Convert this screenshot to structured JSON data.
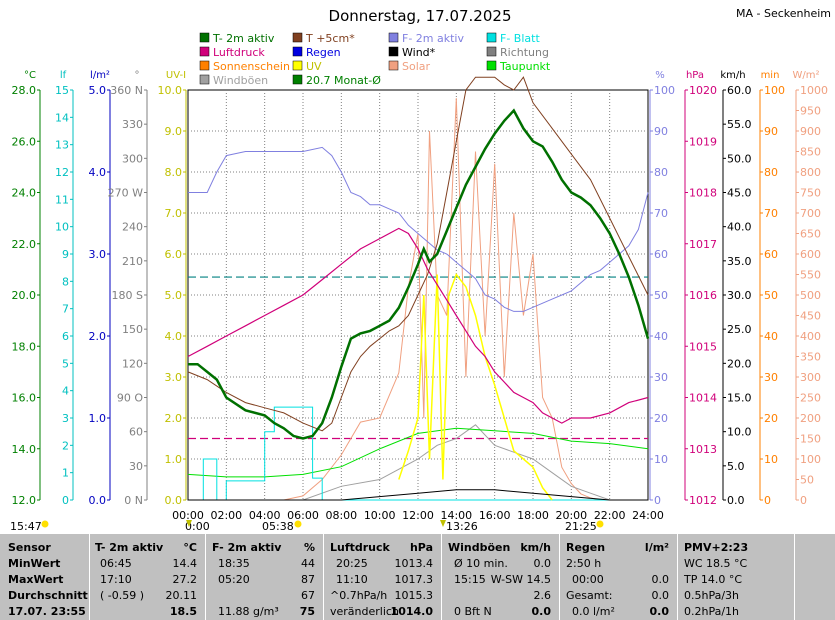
{
  "title": "Donnerstag, 17.07.2025",
  "station": "MA - Seckenheim",
  "legend": [
    {
      "label": "T- 2m aktiv",
      "color": "#007000"
    },
    {
      "label": "T +5cm*",
      "color": "#804020"
    },
    {
      "label": "F- 2m aktiv",
      "color": "#8080e0"
    },
    {
      "label": "F- Blatt",
      "color": "#00e0e0"
    },
    {
      "label": "Luftdruck",
      "color": "#d0007a"
    },
    {
      "label": "Regen",
      "color": "#0000e0"
    },
    {
      "label": "Wind*",
      "color": "#000000"
    },
    {
      "label": "Richtung",
      "color": "#808080"
    },
    {
      "label": "Sonnenschein",
      "color": "#ff8000"
    },
    {
      "label": "UV",
      "color": "#ffff00"
    },
    {
      "label": "Solar",
      "color": "#f0a080"
    },
    {
      "label": "Taupunkt",
      "color": "#00e000"
    },
    {
      "label": "Windböen",
      "color": "#a0a0a0"
    },
    {
      "label": "20.7 Monat-Ø",
      "color": "#008000"
    }
  ],
  "axes": {
    "temp": {
      "unit": "°C",
      "color": "#008000",
      "ticks": [
        "28.0",
        "26.0",
        "24.0",
        "22.0",
        "20.0",
        "18.0",
        "16.0",
        "14.0",
        "12.0"
      ]
    },
    "leaf": {
      "unit": "lf",
      "color": "#00c0c0",
      "ticks": [
        "15",
        "14",
        "13",
        "12",
        "11",
        "10",
        "9",
        "8",
        "7",
        "6",
        "5",
        "4",
        "3",
        "2",
        "1",
        "0"
      ]
    },
    "rain": {
      "unit": "l/m²",
      "color": "#0000c0",
      "ticks": [
        "5.0",
        "4.0",
        "3.0",
        "2.0",
        "1.0",
        "0.0"
      ]
    },
    "dir": {
      "unit": "°",
      "color": "#808080",
      "ticks": [
        "360 N",
        "330",
        "300",
        "270 W",
        "240",
        "210",
        "180 S",
        "150",
        "120",
        "90 O",
        "60",
        "30",
        "0 N"
      ]
    },
    "uv": {
      "unit": "UV-I",
      "color": "#c0c000",
      "ticks": [
        "10.0",
        "9.0",
        "8.0",
        "7.0",
        "6.0",
        "5.0",
        "4.0",
        "3.0",
        "2.0",
        "1.0",
        "0.0"
      ]
    },
    "hum": {
      "unit": "%",
      "color": "#8080e0",
      "ticks": [
        "100",
        "90",
        "80",
        "70",
        "60",
        "50",
        "40",
        "30",
        "20",
        "10",
        "0"
      ]
    },
    "press": {
      "unit": "hPa",
      "color": "#d0007a",
      "ticks": [
        "1020",
        "1019",
        "1018",
        "1017",
        "1016",
        "1015",
        "1014",
        "1013",
        "1012"
      ]
    },
    "wind": {
      "unit": "km/h",
      "color": "#000000",
      "ticks": [
        "60.0",
        "55.0",
        "50.0",
        "45.0",
        "40.0",
        "35.0",
        "30.0",
        "25.0",
        "20.0",
        "15.0",
        "10.0",
        "5.0",
        "0.0"
      ]
    },
    "sun": {
      "unit": "min",
      "color": "#ff8000",
      "ticks": [
        "100",
        "90",
        "80",
        "70",
        "60",
        "50",
        "40",
        "30",
        "20",
        "10",
        "0"
      ]
    },
    "solar": {
      "unit": "W/m²",
      "color": "#f0a080",
      "ticks": [
        "1000",
        "950",
        "900",
        "850",
        "800",
        "750",
        "700",
        "650",
        "600",
        "550",
        "500",
        "450",
        "400",
        "350",
        "300",
        "250",
        "200",
        "150",
        "100",
        "50",
        "0"
      ]
    }
  },
  "time_ticks": [
    "00:00",
    "02:00",
    "04:00",
    "06:00",
    "08:00",
    "10:00",
    "12:00",
    "14:00",
    "16:00",
    "18:00",
    "20:00",
    "22:00",
    "24:00"
  ],
  "sun_events": {
    "left": "15:47",
    "sunrise": "0:00",
    "moon1": "05:38",
    "noon": "13:26",
    "sunset": "21:25"
  },
  "chart_data": {
    "type": "line",
    "x_unit": "hour",
    "xlim": [
      0,
      24
    ],
    "series": [
      {
        "name": "T- 2m aktiv",
        "axis": "°C",
        "color": "#007000",
        "x": [
          0,
          0.5,
          1,
          1.5,
          2,
          3,
          4,
          4.5,
          5,
          5.5,
          6,
          6.5,
          7,
          7.5,
          8,
          8.5,
          9,
          9.5,
          10,
          10.5,
          11,
          11.5,
          12,
          12.3,
          12.6,
          13,
          13.5,
          14,
          14.5,
          15,
          15.5,
          16,
          16.5,
          17,
          17.5,
          18,
          18.5,
          19,
          19.5,
          20,
          20.5,
          21,
          21.5,
          22,
          22.5,
          23,
          23.5,
          24
        ],
        "y": [
          17.3,
          17.3,
          17.0,
          16.7,
          16.0,
          15.5,
          15.3,
          15.0,
          14.8,
          14.5,
          14.4,
          14.5,
          15.0,
          16.0,
          17.2,
          18.3,
          18.5,
          18.6,
          18.8,
          19.0,
          19.5,
          20.3,
          21.2,
          21.8,
          21.3,
          21.6,
          22.5,
          23.4,
          24.3,
          25.0,
          25.7,
          26.3,
          26.8,
          27.2,
          26.5,
          26.0,
          25.8,
          25.2,
          24.5,
          24.0,
          23.8,
          23.5,
          23.0,
          22.4,
          21.6,
          20.7,
          19.6,
          18.3
        ]
      },
      {
        "name": "T +5cm*",
        "axis": "°C",
        "color": "#804020",
        "x": [
          0,
          1,
          2,
          3,
          4,
          5,
          6,
          7,
          7.5,
          8,
          8.5,
          9,
          9.5,
          10,
          10.5,
          11,
          11.5,
          12,
          12.5,
          13,
          13.5,
          14,
          14.5,
          15,
          15.5,
          16,
          16.5,
          17,
          17.5,
          18,
          19,
          20,
          21,
          22,
          23,
          24
        ],
        "y": [
          17.0,
          16.7,
          16.2,
          15.8,
          15.6,
          15.4,
          15.0,
          14.7,
          15.0,
          16.0,
          17.0,
          17.6,
          18.0,
          18.3,
          18.6,
          18.8,
          19.2,
          20.0,
          20.8,
          22.0,
          24.0,
          26.0,
          28.0,
          28.5,
          28.5,
          28.5,
          28.2,
          28.0,
          28.5,
          27.5,
          26.5,
          25.5,
          24.5,
          23.0,
          21.5,
          20.0
        ]
      },
      {
        "name": "F- 2m aktiv",
        "axis": "%",
        "color": "#8080e0",
        "x": [
          0,
          1,
          1.5,
          2,
          3,
          4,
          5,
          6,
          7,
          7.5,
          8,
          8.5,
          9,
          9.5,
          10,
          10.5,
          11,
          11.5,
          12,
          12.5,
          13,
          13.5,
          14,
          14.5,
          15,
          15.5,
          16,
          16.5,
          17,
          17.5,
          18,
          18.5,
          19,
          19.5,
          20,
          20.5,
          21,
          21.5,
          22,
          22.5,
          23,
          23.5,
          24
        ],
        "y": [
          75,
          75,
          80,
          84,
          85,
          85,
          85,
          85,
          86,
          84,
          80,
          75,
          74,
          72,
          72,
          71,
          70,
          67,
          65,
          63,
          61,
          60,
          58,
          56,
          54,
          50,
          49,
          47,
          46,
          46,
          47,
          48,
          49,
          50,
          51,
          53,
          55,
          56,
          58,
          60,
          62,
          66,
          75
        ]
      },
      {
        "name": "Luftdruck",
        "axis": "hPa",
        "color": "#d0007a",
        "x": [
          0,
          1,
          2,
          3,
          4,
          5,
          6,
          7,
          8,
          9,
          10,
          11,
          11.5,
          12,
          12.5,
          13,
          13.5,
          14,
          14.5,
          15,
          15.5,
          16,
          16.5,
          17,
          17.5,
          18,
          18.5,
          19,
          19.5,
          20,
          20.5,
          21,
          22,
          23,
          24
        ],
        "y": [
          1014.8,
          1015.0,
          1015.2,
          1015.4,
          1015.6,
          1015.8,
          1016.0,
          1016.3,
          1016.6,
          1016.9,
          1017.1,
          1017.3,
          1017.2,
          1016.9,
          1016.5,
          1016.2,
          1015.9,
          1015.6,
          1015.3,
          1015.0,
          1014.8,
          1014.5,
          1014.3,
          1014.1,
          1014.0,
          1013.9,
          1013.7,
          1013.6,
          1013.5,
          1013.6,
          1013.6,
          1013.6,
          1013.7,
          1013.9,
          1014.0
        ]
      },
      {
        "name": "Taupunkt",
        "axis": "°C",
        "color": "#00e000",
        "x": [
          0,
          2,
          4,
          6,
          8,
          10,
          12,
          14,
          16,
          18,
          20,
          22,
          24
        ],
        "y": [
          13.0,
          12.9,
          12.9,
          13.0,
          13.3,
          14.0,
          14.6,
          14.8,
          14.7,
          14.6,
          14.3,
          14.2,
          14.0
        ]
      },
      {
        "name": "Solar",
        "axis": "W/m²",
        "color": "#f0a080",
        "x": [
          5,
          6,
          7,
          8,
          9,
          10,
          11,
          11.5,
          12,
          12.3,
          12.6,
          13,
          13.5,
          14,
          14.5,
          15,
          15.5,
          16,
          16.5,
          17,
          17.5,
          18,
          18.5,
          19,
          19.5,
          20,
          20.5,
          21,
          21.5
        ],
        "y": [
          0,
          10,
          50,
          110,
          190,
          200,
          310,
          520,
          650,
          200,
          900,
          500,
          450,
          980,
          300,
          850,
          400,
          820,
          300,
          700,
          450,
          600,
          250,
          200,
          80,
          40,
          15,
          5,
          0
        ]
      },
      {
        "name": "UV",
        "axis": "UV-I",
        "color": "#ffff00",
        "x": [
          11,
          11.5,
          12,
          12.3,
          12.6,
          13,
          13.3,
          13.6,
          14,
          14.5,
          15,
          15.5,
          16,
          16.5,
          17,
          17.5,
          18,
          18.5,
          19
        ],
        "y": [
          0.5,
          1.2,
          2.0,
          5.0,
          1.0,
          5.5,
          0.5,
          5.0,
          5.5,
          5.2,
          4.5,
          3.5,
          2.8,
          2.0,
          1.2,
          1.0,
          0.8,
          0.3,
          0
        ]
      },
      {
        "name": "Windböen",
        "axis": "km/h",
        "color": "#a0a0a0",
        "x": [
          0,
          2,
          4,
          6,
          8,
          10,
          12,
          13,
          14,
          15,
          16,
          17,
          18,
          19,
          20,
          21,
          22,
          24
        ],
        "y": [
          0,
          0,
          0,
          0,
          2,
          3,
          6,
          8,
          9,
          11,
          8,
          7,
          6,
          4,
          2,
          1,
          0,
          0
        ]
      },
      {
        "name": "F- Blatt",
        "axis": "lf",
        "color": "#00e0e0",
        "x": [
          0,
          0.8,
          0.8,
          1.5,
          1.5,
          2,
          2,
          4,
          4,
          4.5,
          4.5,
          6.5,
          6.5,
          7,
          7,
          24
        ],
        "y": [
          0,
          0,
          1.5,
          1.5,
          0,
          0,
          0.7,
          0.7,
          2.5,
          2.5,
          3.4,
          3.4,
          0.8,
          0.8,
          0,
          0
        ]
      },
      {
        "name": "Wind*",
        "axis": "km/h",
        "color": "#000000",
        "x": [
          0,
          8,
          10,
          12,
          14,
          16,
          18,
          20,
          22,
          24
        ],
        "y": [
          0,
          0,
          0.5,
          1,
          1.5,
          1.5,
          1,
          0.5,
          0,
          0
        ]
      }
    ],
    "reference_lines": [
      {
        "label": "20.7 Monat-Ø",
        "axis": "°C",
        "value": 20.7,
        "color": "#008080"
      },
      {
        "label": "Luftdruck",
        "axis": "hPa",
        "value": 1013.2,
        "color": "#d0007a"
      }
    ]
  },
  "footer": {
    "sensor": {
      "h1": "Sensor",
      "r1": "MinWert",
      "r2": "MaxWert",
      "r3": "Durchschnitt",
      "r4": "17.07. 23:55"
    },
    "temp": {
      "h1": "T- 2m aktiv",
      "h2": "°C",
      "min_t": "06:45",
      "min_v": "14.4",
      "max_t": "17:10",
      "max_v": "27.2",
      "avg_t": "( -0.59 )",
      "avg_v": "20.11",
      "cur": "18.5"
    },
    "hum": {
      "h1": "F- 2m aktiv",
      "h2": "%",
      "min_t": "18:35",
      "min_v": "44",
      "max_t": "05:20",
      "max_v": "87",
      "avg_v": "67",
      "cur_t": "11.88 g/m³",
      "cur": "75"
    },
    "press": {
      "h1": "Luftdruck",
      "h2": "hPa",
      "min_t": "20:25",
      "min_v": "1013.4",
      "max_t": "11:10",
      "max_v": "1017.3",
      "avg_t": "^0.7hPa/h",
      "avg_v": "1015.3",
      "cur_t": "veränderlich",
      "cur": "1014.0"
    },
    "wind": {
      "h1": "Windböen",
      "h2": "km/h",
      "r1a": "Ø 10 min.",
      "r1b": "0.0",
      "r2a": "15:15",
      "r2b": "W-SW 14.5",
      "r3b": "2.6",
      "r4a": "0 Bft N",
      "r4b": "0.0"
    },
    "rain": {
      "h1": "Regen",
      "h2": "l/m²",
      "r1a": "2:50 h",
      "r2a": "00:00",
      "r2b": "0.0",
      "r3a": "Gesamt:",
      "r3b": "0.0",
      "r4a": "0.0 l/m²",
      "r4b": "0.0"
    },
    "pmv": {
      "h1": "PMV+2:23",
      "r1": "WC 18.5 °C",
      "r2": "TP 14.0 °C",
      "r3": "0.5hPa/3h",
      "r4": "0.2hPa/1h"
    }
  }
}
